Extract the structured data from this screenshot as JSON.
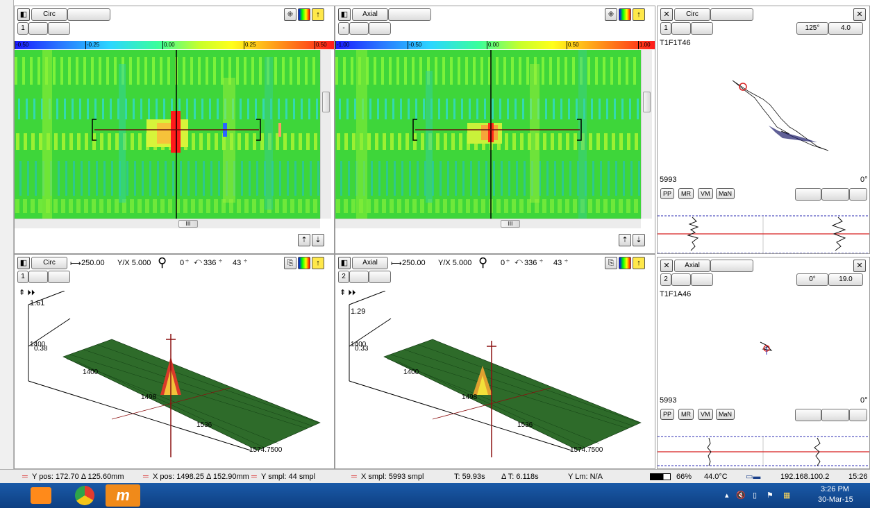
{
  "panels": {
    "cscan_circ": {
      "mode": "Circ",
      "channel": "1",
      "scale_ticks": [
        "-0.50",
        "-0.25",
        "0.00",
        "0.25",
        "0.50"
      ],
      "scroll_thumb": "III"
    },
    "cscan_axial": {
      "mode": "Axial",
      "channel": "-",
      "scale_ticks": [
        "-1.00",
        "-0.50",
        "0.00",
        "0.50",
        "1.00"
      ],
      "scroll_thumb": "III"
    },
    "iso_circ": {
      "mode": "Circ",
      "channel": "1",
      "span": "250.00",
      "yx": "Y/X 5.000",
      "spin1": "0",
      "spin2": "336",
      "spin3": "43",
      "zval": "1.61",
      "axis_labels": [
        "1400",
        "1400",
        "1498",
        "1536",
        "1574.7500"
      ],
      "side_val": "0.38"
    },
    "iso_axial": {
      "mode": "Axial",
      "channel": "2",
      "span": "250.00",
      "yx": "Y/X 5.000",
      "spin1": "0",
      "spin2": "336",
      "spin3": "43",
      "zval": "1.29",
      "axis_labels": [
        "1400",
        "1400",
        "1498",
        "1536",
        "1574.7500"
      ],
      "side_val": "0.33"
    },
    "lissajous_circ": {
      "mode": "Circ",
      "channel": "1",
      "angle": "125°",
      "span": "4.0",
      "name": "T1F1T46",
      "sample": "5993",
      "deg": "0°",
      "tags": [
        "PP",
        "MR",
        "VM",
        "MaN"
      ]
    },
    "lissajous_axial": {
      "mode": "Axial",
      "channel": "2",
      "angle": "0°",
      "span": "19.0",
      "name": "T1F1A46",
      "sample": "5993",
      "deg": "0°",
      "tags": [
        "PP",
        "MR",
        "VM",
        "MaN"
      ]
    }
  },
  "status": {
    "ypos": "Y pos: 172.70 Δ 125.60mm",
    "xpos": "X pos: 1498.25 Δ 152.90mm",
    "ysmpl": "Y smpl: 44 smpl",
    "xsmpl": "X smpl: 5993 smpl",
    "time": "T: 59.93s",
    "dtime": "Δ T: 6.118s",
    "ylm": "Y Lm: N/A",
    "battery": "66%",
    "temp": "44.0°C",
    "ip": "192.168.100.2",
    "clock": "15:26"
  },
  "taskbar": {
    "time": "3:26 PM",
    "date": "30-Mar-15"
  },
  "colors": {
    "accent_red": "#d81e1e",
    "taskbar": "#1a5aa8",
    "surface_green": "#2e6b2a"
  }
}
